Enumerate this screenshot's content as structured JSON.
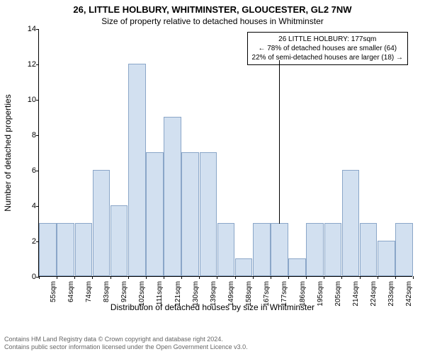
{
  "title_main": "26, LITTLE HOLBURY, WHITMINSTER, GLOUCESTER, GL2 7NW",
  "title_sub": "Size of property relative to detached houses in Whitminster",
  "ylabel": "Number of detached properties",
  "xlabel": "Distribution of detached houses by size in Whitminster",
  "chart": {
    "type": "histogram",
    "background_color": "#ffffff",
    "bar_fill": "#d2e0f0",
    "bar_border": "#8aa6c8",
    "axis_color": "#000000",
    "ymin": 0,
    "ymax": 14,
    "yticks": [
      0,
      2,
      4,
      6,
      8,
      10,
      12,
      14
    ],
    "xtick_labels": [
      "55sqm",
      "64sqm",
      "74sqm",
      "83sqm",
      "92sqm",
      "102sqm",
      "111sqm",
      "121sqm",
      "130sqm",
      "139sqm",
      "149sqm",
      "158sqm",
      "167sqm",
      "177sqm",
      "186sqm",
      "195sqm",
      "205sqm",
      "214sqm",
      "224sqm",
      "233sqm",
      "242sqm"
    ],
    "bars": [
      3,
      3,
      3,
      6,
      4,
      12,
      7,
      9,
      7,
      7,
      3,
      1,
      3,
      3,
      1,
      3,
      3,
      6,
      3,
      2,
      3
    ],
    "tick_fontsize": 11,
    "label_fontsize": 12,
    "title_fontsize": 13,
    "bar_width_ratio": 0.98
  },
  "annotation": {
    "line1": "26 LITTLE HOLBURY: 177sqm",
    "line2": "← 78% of detached houses are smaller (64)",
    "line3": "22% of semi-detached houses are larger (18) →",
    "border_color": "#000000",
    "bg_color": "#ffffff",
    "fontsize": 10,
    "marker_x_index": 13
  },
  "footer": {
    "line1": "Contains HM Land Registry data © Crown copyright and database right 2024.",
    "line2": "Contains public sector information licensed under the Open Government Licence v3.0.",
    "color": "#666666",
    "fontsize": 9
  }
}
